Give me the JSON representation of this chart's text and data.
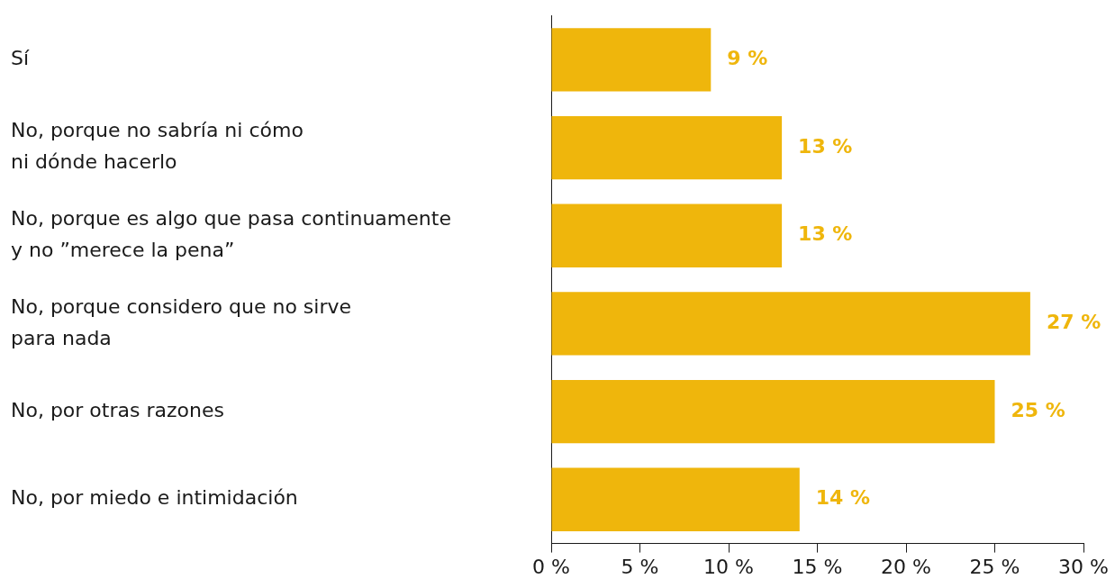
{
  "chart_data": {
    "type": "bar",
    "orientation": "horizontal",
    "categories": [
      "Sí",
      "No, porque no sabría ni cómo\nni dónde hacerlo",
      "No, porque es algo que pasa continuamente\ny no ”merece la pena”",
      "No, porque considero que no sirve\npara nada",
      "No, por otras razones",
      "No, por miedo e intimidación"
    ],
    "values": [
      9,
      13,
      13,
      27,
      25,
      14
    ],
    "value_labels": [
      "9 %",
      "13 %",
      "13 %",
      "27 %",
      "25 %",
      "14 %"
    ],
    "color": "#efb60c",
    "xlim": [
      0,
      30
    ],
    "xticks": [
      {
        "value": 0,
        "label": "0 %"
      },
      {
        "value": 5,
        "label": "5 %"
      },
      {
        "value": 10,
        "label": "10 %"
      },
      {
        "value": 15,
        "label": "15 %"
      },
      {
        "value": 20,
        "label": "20 %"
      },
      {
        "value": 25,
        "label": "25 %"
      },
      {
        "value": 30,
        "label": "30 %"
      }
    ],
    "grid": false,
    "legend": false
  }
}
